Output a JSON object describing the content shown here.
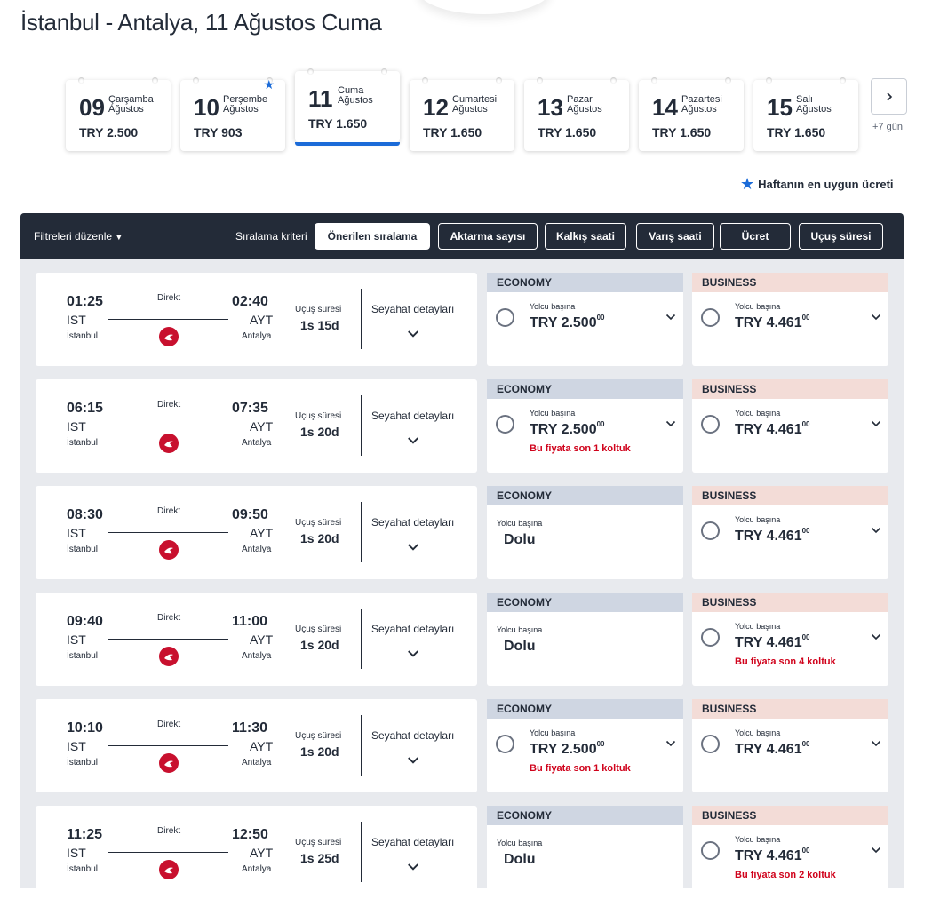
{
  "page": {
    "title": "İstanbul - Antalya, 11 Ağustos Cuma"
  },
  "dates": [
    {
      "day": "09",
      "weekday": "Çarşamba",
      "month": "Ağustos",
      "price": "TRY 2.500",
      "active": false,
      "best": false
    },
    {
      "day": "10",
      "weekday": "Perşembe",
      "month": "Ağustos",
      "price": "TRY 903",
      "active": false,
      "best": true
    },
    {
      "day": "11",
      "weekday": "Cuma",
      "month": "Ağustos",
      "price": "TRY 1.650",
      "active": true,
      "best": false
    },
    {
      "day": "12",
      "weekday": "Cumartesi",
      "month": "Ağustos",
      "price": "TRY 1.650",
      "active": false,
      "best": false
    },
    {
      "day": "13",
      "weekday": "Pazar",
      "month": "Ağustos",
      "price": "TRY 1.650",
      "active": false,
      "best": false
    },
    {
      "day": "14",
      "weekday": "Pazartesi",
      "month": "Ağustos",
      "price": "TRY 1.650",
      "active": false,
      "best": false
    },
    {
      "day": "15",
      "weekday": "Salı",
      "month": "Ağustos",
      "price": "TRY 1.650",
      "active": false,
      "best": false
    }
  ],
  "date_nav": {
    "next_icon": "chevron-right-icon",
    "more_label": "+7 gün"
  },
  "legend": {
    "icon": "star-icon",
    "text": "Haftanın en uygun ücreti",
    "color": "#1b6bd8"
  },
  "filters": {
    "toggle_label": "Filtreleri düzenle",
    "sort_label": "Sıralama kriteri",
    "sort_options": [
      {
        "label": "Önerilen sıralama",
        "active": true
      },
      {
        "label": "Aktarma sayısı",
        "active": false
      },
      {
        "label": "Kalkış saati",
        "active": false
      },
      {
        "label": "Varış saati",
        "active": false
      },
      {
        "label": "Ücret",
        "active": false
      },
      {
        "label": "Uçuş süresi",
        "active": false
      }
    ]
  },
  "labels": {
    "direct": "Direkt",
    "duration": "Uçuş süresi",
    "details": "Seyahat detayları",
    "economy": "ECONOMY",
    "business": "BUSINESS",
    "per_passenger": "Yolcu başına",
    "sold_out": "Dolu"
  },
  "flights": [
    {
      "dep_time": "01:25",
      "dep_code": "IST",
      "dep_city": "İstanbul",
      "arr_time": "02:40",
      "arr_code": "AYT",
      "arr_city": "Antalya",
      "duration": "1s 15d",
      "economy": {
        "available": true,
        "price": "TRY 2.500",
        "decimals": "00",
        "warning": ""
      },
      "business": {
        "available": true,
        "price": "TRY 4.461",
        "decimals": "00",
        "warning": ""
      }
    },
    {
      "dep_time": "06:15",
      "dep_code": "IST",
      "dep_city": "İstanbul",
      "arr_time": "07:35",
      "arr_code": "AYT",
      "arr_city": "Antalya",
      "duration": "1s 20d",
      "economy": {
        "available": true,
        "price": "TRY 2.500",
        "decimals": "00",
        "warning": "Bu fiyata son 1 koltuk"
      },
      "business": {
        "available": true,
        "price": "TRY 4.461",
        "decimals": "00",
        "warning": ""
      }
    },
    {
      "dep_time": "08:30",
      "dep_code": "IST",
      "dep_city": "İstanbul",
      "arr_time": "09:50",
      "arr_code": "AYT",
      "arr_city": "Antalya",
      "duration": "1s 20d",
      "economy": {
        "available": false
      },
      "business": {
        "available": true,
        "price": "TRY 4.461",
        "decimals": "00",
        "warning": ""
      }
    },
    {
      "dep_time": "09:40",
      "dep_code": "IST",
      "dep_city": "İstanbul",
      "arr_time": "11:00",
      "arr_code": "AYT",
      "arr_city": "Antalya",
      "duration": "1s 20d",
      "economy": {
        "available": false
      },
      "business": {
        "available": true,
        "price": "TRY 4.461",
        "decimals": "00",
        "warning": "Bu fiyata son 4 koltuk"
      }
    },
    {
      "dep_time": "10:10",
      "dep_code": "IST",
      "dep_city": "İstanbul",
      "arr_time": "11:30",
      "arr_code": "AYT",
      "arr_city": "Antalya",
      "duration": "1s 20d",
      "economy": {
        "available": true,
        "price": "TRY 2.500",
        "decimals": "00",
        "warning": "Bu fiyata son 1 koltuk"
      },
      "business": {
        "available": true,
        "price": "TRY 4.461",
        "decimals": "00",
        "warning": ""
      }
    },
    {
      "dep_time": "11:25",
      "dep_code": "IST",
      "dep_city": "İstanbul",
      "arr_time": "12:50",
      "arr_code": "AYT",
      "arr_city": "Antalya",
      "duration": "1s 25d",
      "economy": {
        "available": false
      },
      "business": {
        "available": true,
        "price": "TRY 4.461",
        "decimals": "00",
        "warning": "Bu fiyata son 2 koltuk"
      }
    }
  ],
  "colors": {
    "navy": "#232b38",
    "accent": "#1b6bd8",
    "economy_band": "#cfd6e2",
    "business_band": "#f3dcd7",
    "warning": "#d0021b",
    "airline_red": "#c8102e"
  },
  "icons": {
    "airline_logo": "turkish-airlines-logo-icon",
    "expand": "chevron-down-icon"
  }
}
